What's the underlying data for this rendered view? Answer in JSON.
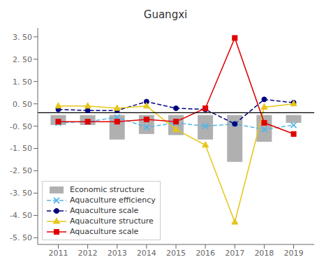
{
  "chart_data": {
    "type": "bar",
    "title": "Guangxi",
    "x": [
      2011,
      2012,
      2013,
      2014,
      2015,
      2016,
      2017,
      2018,
      2019
    ],
    "xlim": [
      2010.3,
      2019.7
    ],
    "xticks": [
      2011,
      2012,
      2013,
      2014,
      2015,
      2016,
      2017,
      2018,
      2019
    ],
    "ylim": [
      -5.8,
      3.9
    ],
    "yticks": [
      {
        "value": -5.5,
        "label": "-5. 50"
      },
      {
        "value": -4.5,
        "label": "-4. 50"
      },
      {
        "value": -3.5,
        "label": "-3. 50"
      },
      {
        "value": -2.5,
        "label": "-2. 50"
      },
      {
        "value": -1.5,
        "label": "-1. 50"
      },
      {
        "value": -0.5,
        "label": "-0. 50"
      },
      {
        "value": 0.5,
        "label": "0. 50"
      },
      {
        "value": 1.5,
        "label": "1. 50"
      },
      {
        "value": 2.5,
        "label": "2. 50"
      },
      {
        "value": 3.5,
        "label": "3. 50"
      }
    ],
    "hline": 0.1,
    "grid": false,
    "legend": "lower left",
    "series": [
      {
        "name": "Economic structure",
        "type": "bar",
        "color": "#b0b0b0",
        "values": [
          -0.45,
          -0.45,
          -1.1,
          -0.85,
          -0.9,
          -1.1,
          -2.1,
          -1.2,
          -0.35
        ]
      },
      {
        "name": "Aquaculture efficiency",
        "type": "line",
        "color": "#56b4e9",
        "line_style": "dashed",
        "marker": "x",
        "values": [
          -0.35,
          -0.3,
          -0.1,
          -0.55,
          -0.35,
          -0.5,
          -0.4,
          -0.65,
          -0.45
        ]
      },
      {
        "name": "Aquaculture scale",
        "type": "line",
        "color": "#000080",
        "line_style": "dashed",
        "marker": "circle",
        "values": [
          0.25,
          0.2,
          0.2,
          0.6,
          0.3,
          0.25,
          -0.4,
          0.7,
          0.55
        ]
      },
      {
        "name": "Aquaculture structure",
        "type": "line",
        "color": "#e6c619",
        "line_style": "solid",
        "marker": "triangle",
        "values": [
          0.4,
          0.4,
          0.3,
          0.4,
          -0.65,
          -1.35,
          -4.8,
          0.35,
          0.5
        ]
      },
      {
        "name": "Aquaculture scale",
        "type": "line",
        "color": "#e00000",
        "line_style": "solid",
        "marker": "square",
        "values": [
          -0.3,
          -0.3,
          -0.3,
          -0.2,
          -0.3,
          0.3,
          3.45,
          -0.35,
          -0.85
        ]
      }
    ]
  }
}
